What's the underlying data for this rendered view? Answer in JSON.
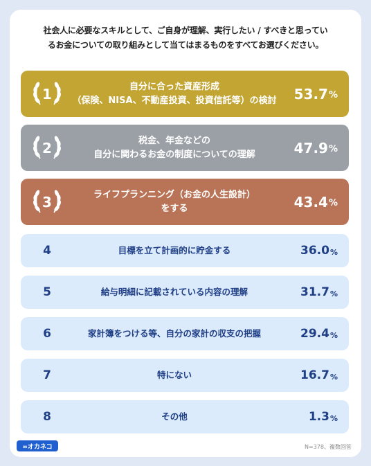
{
  "question": {
    "line1": "社会人に必要なスキルとして、ご自身が理解、実行したい / すべきと思ってい",
    "line2": "るお金についての取り組みとして当てはまるものをすべてお選びください。"
  },
  "colors": {
    "gold": "#c2a532",
    "silver": "#9aa0a6",
    "bronze": "#b97356",
    "plain_bg": "#dcebfb",
    "plain_text": "#1f3f86"
  },
  "chart_data": {
    "type": "bar",
    "unit": "%",
    "categories": [
      [
        "自分に合った資産形成",
        "（保険、NISA、不動産投資、投資信託等）の検討"
      ],
      [
        "税金、年金などの",
        "自分に関わるお金の制度についての理解"
      ],
      [
        "ライフプランニング（お金の人生設計）",
        "をする"
      ],
      [
        "目標を立て計画的に貯金する"
      ],
      [
        "給与明細に記載されている内容の理解"
      ],
      [
        "家計簿をつける等、自分の家計の収支の把握"
      ],
      [
        "特にない"
      ],
      [
        "その他"
      ]
    ],
    "ranks": [
      "1",
      "2",
      "3",
      "4",
      "5",
      "6",
      "7",
      "8"
    ],
    "values": [
      53.7,
      47.9,
      43.4,
      36.0,
      31.7,
      29.4,
      16.7,
      1.3
    ],
    "value_labels": [
      "53.7",
      "47.9",
      "43.4",
      "36.0",
      "31.7",
      "29.4",
      "16.7",
      "1.3"
    ]
  },
  "footer": {
    "logo_text": "∞オカネコ",
    "note": "N=378、複数回答"
  }
}
